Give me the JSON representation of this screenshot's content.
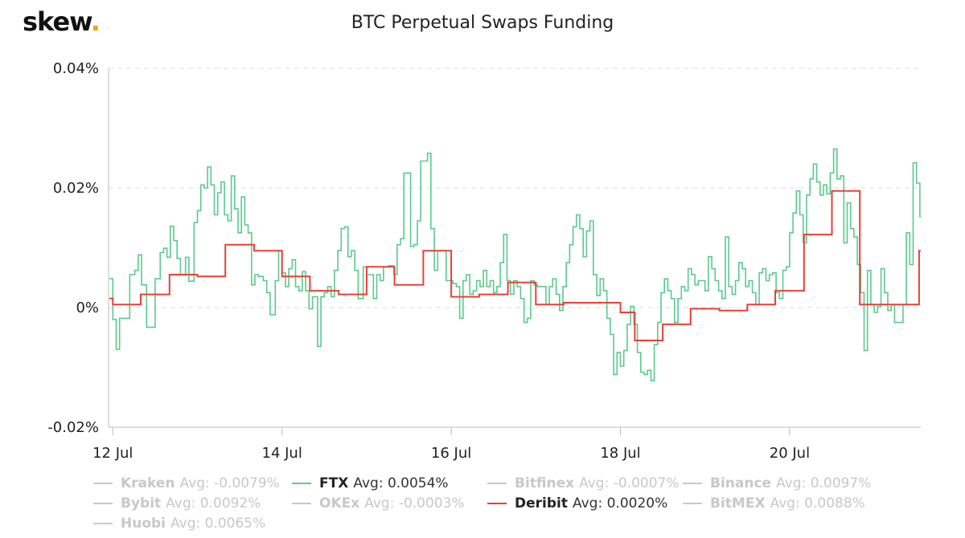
{
  "header": {
    "logo_text": "skew",
    "logo_dot": ".",
    "title": "BTC Perpetual Swaps Funding"
  },
  "colors": {
    "ftx": "#5cc98e",
    "deribit": "#e8403a",
    "muted": "#c8c8c8",
    "grid": "#dddddd",
    "logo_dot": "#e6a817"
  },
  "chart_data": {
    "type": "line",
    "title": "BTC Perpetual Swaps Funding",
    "xlabel": "",
    "ylabel": "",
    "x_ticks": [
      "12 Jul",
      "14 Jul",
      "16 Jul",
      "18 Jul",
      "20 Jul"
    ],
    "x_tick_days": [
      12,
      14,
      16,
      18,
      20
    ],
    "xlim_days": [
      11.95,
      21.55
    ],
    "y_ticks": [
      "-0.02%",
      "0%",
      "0.02%",
      "0.04%"
    ],
    "y_tick_values": [
      -0.02,
      0,
      0.02,
      0.04
    ],
    "ylim": [
      -0.02,
      0.04
    ],
    "grid": "horizontal dashed",
    "legend_placement": "bottom",
    "series": [
      {
        "name": "FTX",
        "avg_label": "Avg: 0.0054%",
        "visible": true,
        "step": true,
        "points": [
          [
            11.96,
            0.0048
          ],
          [
            12.0,
            -0.002
          ],
          [
            12.04,
            -0.007
          ],
          [
            12.08,
            -0.0018
          ],
          [
            12.14,
            -0.0018
          ],
          [
            12.2,
            0.0055
          ],
          [
            12.26,
            0.0062
          ],
          [
            12.3,
            0.0088
          ],
          [
            12.34,
            0.0038
          ],
          [
            12.4,
            -0.0033
          ],
          [
            12.46,
            -0.0033
          ],
          [
            12.5,
            0.0048
          ],
          [
            12.56,
            0.0092
          ],
          [
            12.6,
            0.0099
          ],
          [
            12.64,
            0.0084
          ],
          [
            12.68,
            0.0136
          ],
          [
            12.72,
            0.0112
          ],
          [
            12.76,
            0.0082
          ],
          [
            12.8,
            0.0055
          ],
          [
            12.86,
            0.0084
          ],
          [
            12.9,
            0.0044
          ],
          [
            12.96,
            0.0142
          ],
          [
            13.0,
            0.0162
          ],
          [
            13.04,
            0.0205
          ],
          [
            13.08,
            0.02
          ],
          [
            13.12,
            0.0235
          ],
          [
            13.16,
            0.0205
          ],
          [
            13.2,
            0.0155
          ],
          [
            13.24,
            0.0192
          ],
          [
            13.28,
            0.021
          ],
          [
            13.32,
            0.0155
          ],
          [
            13.36,
            0.0145
          ],
          [
            13.4,
            0.022
          ],
          [
            13.44,
            0.0165
          ],
          [
            13.48,
            0.0125
          ],
          [
            13.52,
            0.0185
          ],
          [
            13.56,
            0.0138
          ],
          [
            13.6,
            0.0125
          ],
          [
            13.64,
            0.0038
          ],
          [
            13.68,
            0.0055
          ],
          [
            13.72,
            0.0052
          ],
          [
            13.78,
            0.0045
          ],
          [
            13.82,
            0.0025
          ],
          [
            13.86,
            -0.0012
          ],
          [
            13.92,
            0.0045
          ],
          [
            13.96,
            0.0095
          ],
          [
            14.0,
            0.0058
          ],
          [
            14.04,
            0.0035
          ],
          [
            14.08,
            0.0065
          ],
          [
            14.12,
            0.008
          ],
          [
            14.16,
            0.0035
          ],
          [
            14.2,
            0.0028
          ],
          [
            14.24,
            0.006
          ],
          [
            14.28,
            0.0028
          ],
          [
            14.32,
            -0.0002
          ],
          [
            14.36,
            0.0018
          ],
          [
            14.42,
            -0.0065
          ],
          [
            14.46,
            0.0018
          ],
          [
            14.5,
            0.0025
          ],
          [
            14.54,
            0.0035
          ],
          [
            14.58,
            0.0018
          ],
          [
            14.62,
            0.0062
          ],
          [
            14.66,
            0.0095
          ],
          [
            14.7,
            0.0132
          ],
          [
            14.74,
            0.0135
          ],
          [
            14.78,
            0.0085
          ],
          [
            14.82,
            0.0095
          ],
          [
            14.86,
            0.0062
          ],
          [
            14.9,
            0.0015
          ],
          [
            14.96,
            0.0068
          ],
          [
            15.0,
            0.0055
          ],
          [
            15.04,
            0.0055
          ],
          [
            15.08,
            0.0015
          ],
          [
            15.12,
            0.0055
          ],
          [
            15.16,
            0.0045
          ],
          [
            15.2,
            0.0068
          ],
          [
            15.26,
            0.007
          ],
          [
            15.32,
            0.0055
          ],
          [
            15.36,
            0.0105
          ],
          [
            15.4,
            0.0115
          ],
          [
            15.44,
            0.0225
          ],
          [
            15.48,
            0.0225
          ],
          [
            15.52,
            0.0102
          ],
          [
            15.56,
            0.0105
          ],
          [
            15.6,
            0.0145
          ],
          [
            15.64,
            0.0245
          ],
          [
            15.68,
            0.0245
          ],
          [
            15.72,
            0.0258
          ],
          [
            15.76,
            0.0132
          ],
          [
            15.8,
            0.0062
          ],
          [
            15.84,
            0.0095
          ],
          [
            15.88,
            0.0095
          ],
          [
            15.94,
            0.0045
          ],
          [
            15.98,
            0.0045
          ],
          [
            16.02,
            0.004
          ],
          [
            16.06,
            0.0035
          ],
          [
            16.1,
            -0.0018
          ],
          [
            16.14,
            0.0045
          ],
          [
            16.18,
            0.0055
          ],
          [
            16.22,
            0.0022
          ],
          [
            16.26,
            0.0028
          ],
          [
            16.3,
            0.0045
          ],
          [
            16.34,
            0.0035
          ],
          [
            16.38,
            0.0062
          ],
          [
            16.42,
            0.0035
          ],
          [
            16.46,
            0.0045
          ],
          [
            16.5,
            0.0025
          ],
          [
            16.54,
            0.0035
          ],
          [
            16.58,
            0.0075
          ],
          [
            16.62,
            0.0122
          ],
          [
            16.66,
            0.0045
          ],
          [
            16.7,
            0.0022
          ],
          [
            16.74,
            0.0045
          ],
          [
            16.78,
            0.0035
          ],
          [
            16.82,
            0.0015
          ],
          [
            16.86,
            -0.0025
          ],
          [
            16.9,
            -0.0018
          ],
          [
            16.94,
            0.0045
          ],
          [
            16.98,
            0.0038
          ],
          [
            17.02,
            0.0035
          ],
          [
            17.08,
            0.0035
          ],
          [
            17.12,
            0.0005
          ],
          [
            17.16,
            0.0035
          ],
          [
            17.2,
            0.0048
          ],
          [
            17.24,
            0.0022
          ],
          [
            17.28,
            -0.0005
          ],
          [
            17.32,
            0.0035
          ],
          [
            17.36,
            0.0075
          ],
          [
            17.4,
            0.0105
          ],
          [
            17.44,
            0.0135
          ],
          [
            17.48,
            0.0155
          ],
          [
            17.52,
            0.0132
          ],
          [
            17.56,
            0.0085
          ],
          [
            17.6,
            0.0128
          ],
          [
            17.64,
            0.0145
          ],
          [
            17.68,
            0.0055
          ],
          [
            17.72,
            0.002
          ],
          [
            17.76,
            0.0048
          ],
          [
            17.8,
            0.0028
          ],
          [
            17.84,
            -0.0018
          ],
          [
            17.88,
            -0.0045
          ],
          [
            17.92,
            -0.0112
          ],
          [
            17.96,
            -0.0075
          ],
          [
            18.0,
            -0.0098
          ],
          [
            18.04,
            -0.0072
          ],
          [
            18.08,
            -0.0028
          ],
          [
            18.12,
            0.0002
          ],
          [
            18.16,
            -0.0028
          ],
          [
            18.2,
            -0.0075
          ],
          [
            18.24,
            -0.0108
          ],
          [
            18.28,
            -0.0112
          ],
          [
            18.32,
            -0.0105
          ],
          [
            18.36,
            -0.0122
          ],
          [
            18.4,
            -0.0062
          ],
          [
            18.44,
            -0.0025
          ],
          [
            18.48,
            0.0025
          ],
          [
            18.52,
            0.0048
          ],
          [
            18.56,
            0.0028
          ],
          [
            18.6,
            0.0015
          ],
          [
            18.64,
            -0.0025
          ],
          [
            18.68,
            0.0015
          ],
          [
            18.72,
            0.0035
          ],
          [
            18.76,
            0.0028
          ],
          [
            18.8,
            0.0065
          ],
          [
            18.84,
            0.0055
          ],
          [
            18.88,
            0.0038
          ],
          [
            18.92,
            0.0045
          ],
          [
            18.96,
            0.0045
          ],
          [
            19.0,
            0.0028
          ],
          [
            19.04,
            0.0085
          ],
          [
            19.08,
            0.0065
          ],
          [
            19.12,
            0.0045
          ],
          [
            19.16,
            0.0028
          ],
          [
            19.2,
            0.0015
          ],
          [
            19.24,
            0.0118
          ],
          [
            19.28,
            0.0035
          ],
          [
            19.32,
            0.0022
          ],
          [
            19.36,
            0.0045
          ],
          [
            19.4,
            0.0075
          ],
          [
            19.44,
            0.0065
          ],
          [
            19.48,
            0.0035
          ],
          [
            19.52,
            0.0045
          ],
          [
            19.56,
            0.0025
          ],
          [
            19.6,
            0.0005
          ],
          [
            19.64,
            0.0058
          ],
          [
            19.68,
            0.0065
          ],
          [
            19.72,
            0.0045
          ],
          [
            19.76,
            0.0055
          ],
          [
            19.8,
            0.0058
          ],
          [
            19.84,
            0.0025
          ],
          [
            19.88,
            0.0015
          ],
          [
            19.92,
            0.0062
          ],
          [
            19.96,
            0.0068
          ],
          [
            20.0,
            0.0125
          ],
          [
            20.04,
            0.0158
          ],
          [
            20.08,
            0.0195
          ],
          [
            20.12,
            0.0155
          ],
          [
            20.16,
            0.0108
          ],
          [
            20.2,
            0.0188
          ],
          [
            20.24,
            0.0215
          ],
          [
            20.28,
            0.024
          ],
          [
            20.32,
            0.021
          ],
          [
            20.36,
            0.0188
          ],
          [
            20.4,
            0.0205
          ],
          [
            20.44,
            0.019
          ],
          [
            20.48,
            0.0225
          ],
          [
            20.52,
            0.0265
          ],
          [
            20.56,
            0.0215
          ],
          [
            20.6,
            0.022
          ],
          [
            20.64,
            0.0108
          ],
          [
            20.68,
            0.0175
          ],
          [
            20.72,
            0.0132
          ],
          [
            20.76,
            0.0118
          ],
          [
            20.8,
            0.0072
          ],
          [
            20.84,
            0.0025
          ],
          [
            20.88,
            -0.0072
          ],
          [
            20.92,
            0.0062
          ],
          [
            20.96,
            0.0005
          ],
          [
            21.0,
            -0.0008
          ],
          [
            21.04,
            0.0002
          ],
          [
            21.08,
            0.0065
          ],
          [
            21.12,
            0.0025
          ],
          [
            21.16,
            -0.0005
          ],
          [
            21.2,
            0.0005
          ],
          [
            21.24,
            -0.0025
          ],
          [
            21.3,
            -0.0025
          ],
          [
            21.34,
            0.0005
          ],
          [
            21.38,
            0.0125
          ],
          [
            21.42,
            0.0072
          ],
          [
            21.46,
            0.0242
          ],
          [
            21.5,
            0.0208
          ],
          [
            21.54,
            0.0152
          ]
        ]
      },
      {
        "name": "Deribit",
        "avg_label": "Avg: 0.0020%",
        "visible": true,
        "step": true,
        "points": [
          [
            11.96,
            0.0015
          ],
          [
            12.0,
            0.0005
          ],
          [
            12.33,
            0.0022
          ],
          [
            12.67,
            0.0055
          ],
          [
            13.0,
            0.0052
          ],
          [
            13.33,
            0.0105
          ],
          [
            13.67,
            0.0095
          ],
          [
            14.0,
            0.0052
          ],
          [
            14.33,
            0.0028
          ],
          [
            14.67,
            0.0022
          ],
          [
            15.0,
            0.0068
          ],
          [
            15.33,
            0.0038
          ],
          [
            15.67,
            0.0095
          ],
          [
            16.0,
            0.0018
          ],
          [
            16.33,
            0.0022
          ],
          [
            16.67,
            0.0042
          ],
          [
            17.0,
            0.0005
          ],
          [
            17.33,
            0.0008
          ],
          [
            17.67,
            0.0008
          ],
          [
            18.0,
            -0.0008
          ],
          [
            18.17,
            -0.0055
          ],
          [
            18.5,
            -0.0028
          ],
          [
            18.83,
            -0.0002
          ],
          [
            19.17,
            -0.0005
          ],
          [
            19.5,
            0.0005
          ],
          [
            19.83,
            0.0028
          ],
          [
            20.17,
            0.0122
          ],
          [
            20.5,
            0.0195
          ],
          [
            20.83,
            0.0005
          ],
          [
            21.17,
            0.0005
          ],
          [
            21.53,
            0.0095
          ]
        ]
      }
    ]
  },
  "legend": [
    {
      "name": "Kraken",
      "avg": "Avg: -0.0079%",
      "active": false
    },
    {
      "name": "FTX",
      "avg": "Avg: 0.0054%",
      "active": true,
      "color_key": "ftx"
    },
    {
      "name": "Bitfinex",
      "avg": "Avg: -0.0007%",
      "active": false
    },
    {
      "name": "Binance",
      "avg": "Avg: 0.0097%",
      "active": false
    },
    {
      "name": "Bybit",
      "avg": "Avg: 0.0092%",
      "active": false
    },
    {
      "name": "OKEx",
      "avg": "Avg: -0.0003%",
      "active": false
    },
    {
      "name": "Deribit",
      "avg": "Avg: 0.0020%",
      "active": true,
      "color_key": "deribit"
    },
    {
      "name": "BitMEX",
      "avg": "Avg: 0.0088%",
      "active": false
    },
    {
      "name": "Huobi",
      "avg": "Avg: 0.0065%",
      "active": false
    }
  ]
}
